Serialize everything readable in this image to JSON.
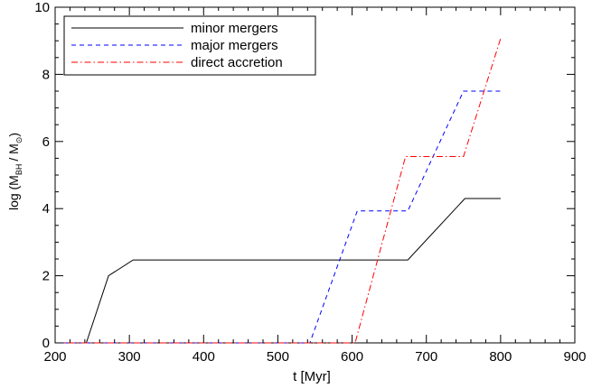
{
  "chart_data": {
    "type": "line",
    "title": "",
    "xlabel": "t [Myr]",
    "ylabel": {
      "prefix": "log (M",
      "sub1": "BH",
      "mid": "/ M",
      "sub2": "⊙",
      "suffix": ")"
    },
    "xlim": [
      200,
      900
    ],
    "ylim": [
      0,
      10
    ],
    "x_ticks": [
      200,
      300,
      400,
      500,
      600,
      700,
      800,
      900
    ],
    "y_ticks": [
      0,
      2,
      4,
      6,
      8,
      10
    ],
    "x_minor_step": 20,
    "y_minor_step": 0.5,
    "grid": false,
    "legend_position": "top-left",
    "series": [
      {
        "name": "minor mergers",
        "color": "#000000",
        "dash": "solid",
        "x": [
          200,
          242,
          272,
          305,
          400,
          500,
          600,
          675,
          752,
          800
        ],
        "y": [
          0,
          0,
          2.0,
          2.47,
          2.47,
          2.47,
          2.47,
          2.47,
          4.3,
          4.3
        ]
      },
      {
        "name": "major mergers",
        "color": "#0000ff",
        "dash": "dashed",
        "x": [
          200,
          543,
          607,
          675,
          750,
          800
        ],
        "y": [
          0,
          0,
          3.93,
          3.93,
          7.5,
          7.5
        ]
      },
      {
        "name": "direct accretion",
        "color": "#ff0000",
        "dash": "dashdot",
        "x": [
          200,
          604,
          672,
          750,
          800
        ],
        "y": [
          0,
          0,
          5.55,
          5.55,
          9.07
        ]
      }
    ]
  }
}
